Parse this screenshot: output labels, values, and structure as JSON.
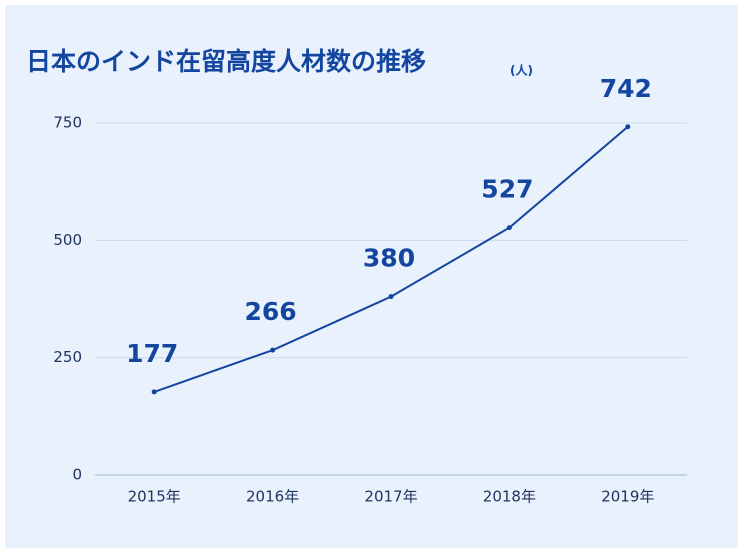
{
  "chart_data": {
    "type": "line",
    "title": "日本のインド在留高度人材数の推移",
    "subtitle": "(人)",
    "categories": [
      "2015年",
      "2016年",
      "2017年",
      "2018年",
      "2019年"
    ],
    "values": [
      177,
      266,
      380,
      527,
      742
    ],
    "color": "#1446a0",
    "ylim": [
      0,
      750
    ],
    "yticks": [
      0,
      250,
      500,
      750
    ],
    "grid": true
  }
}
